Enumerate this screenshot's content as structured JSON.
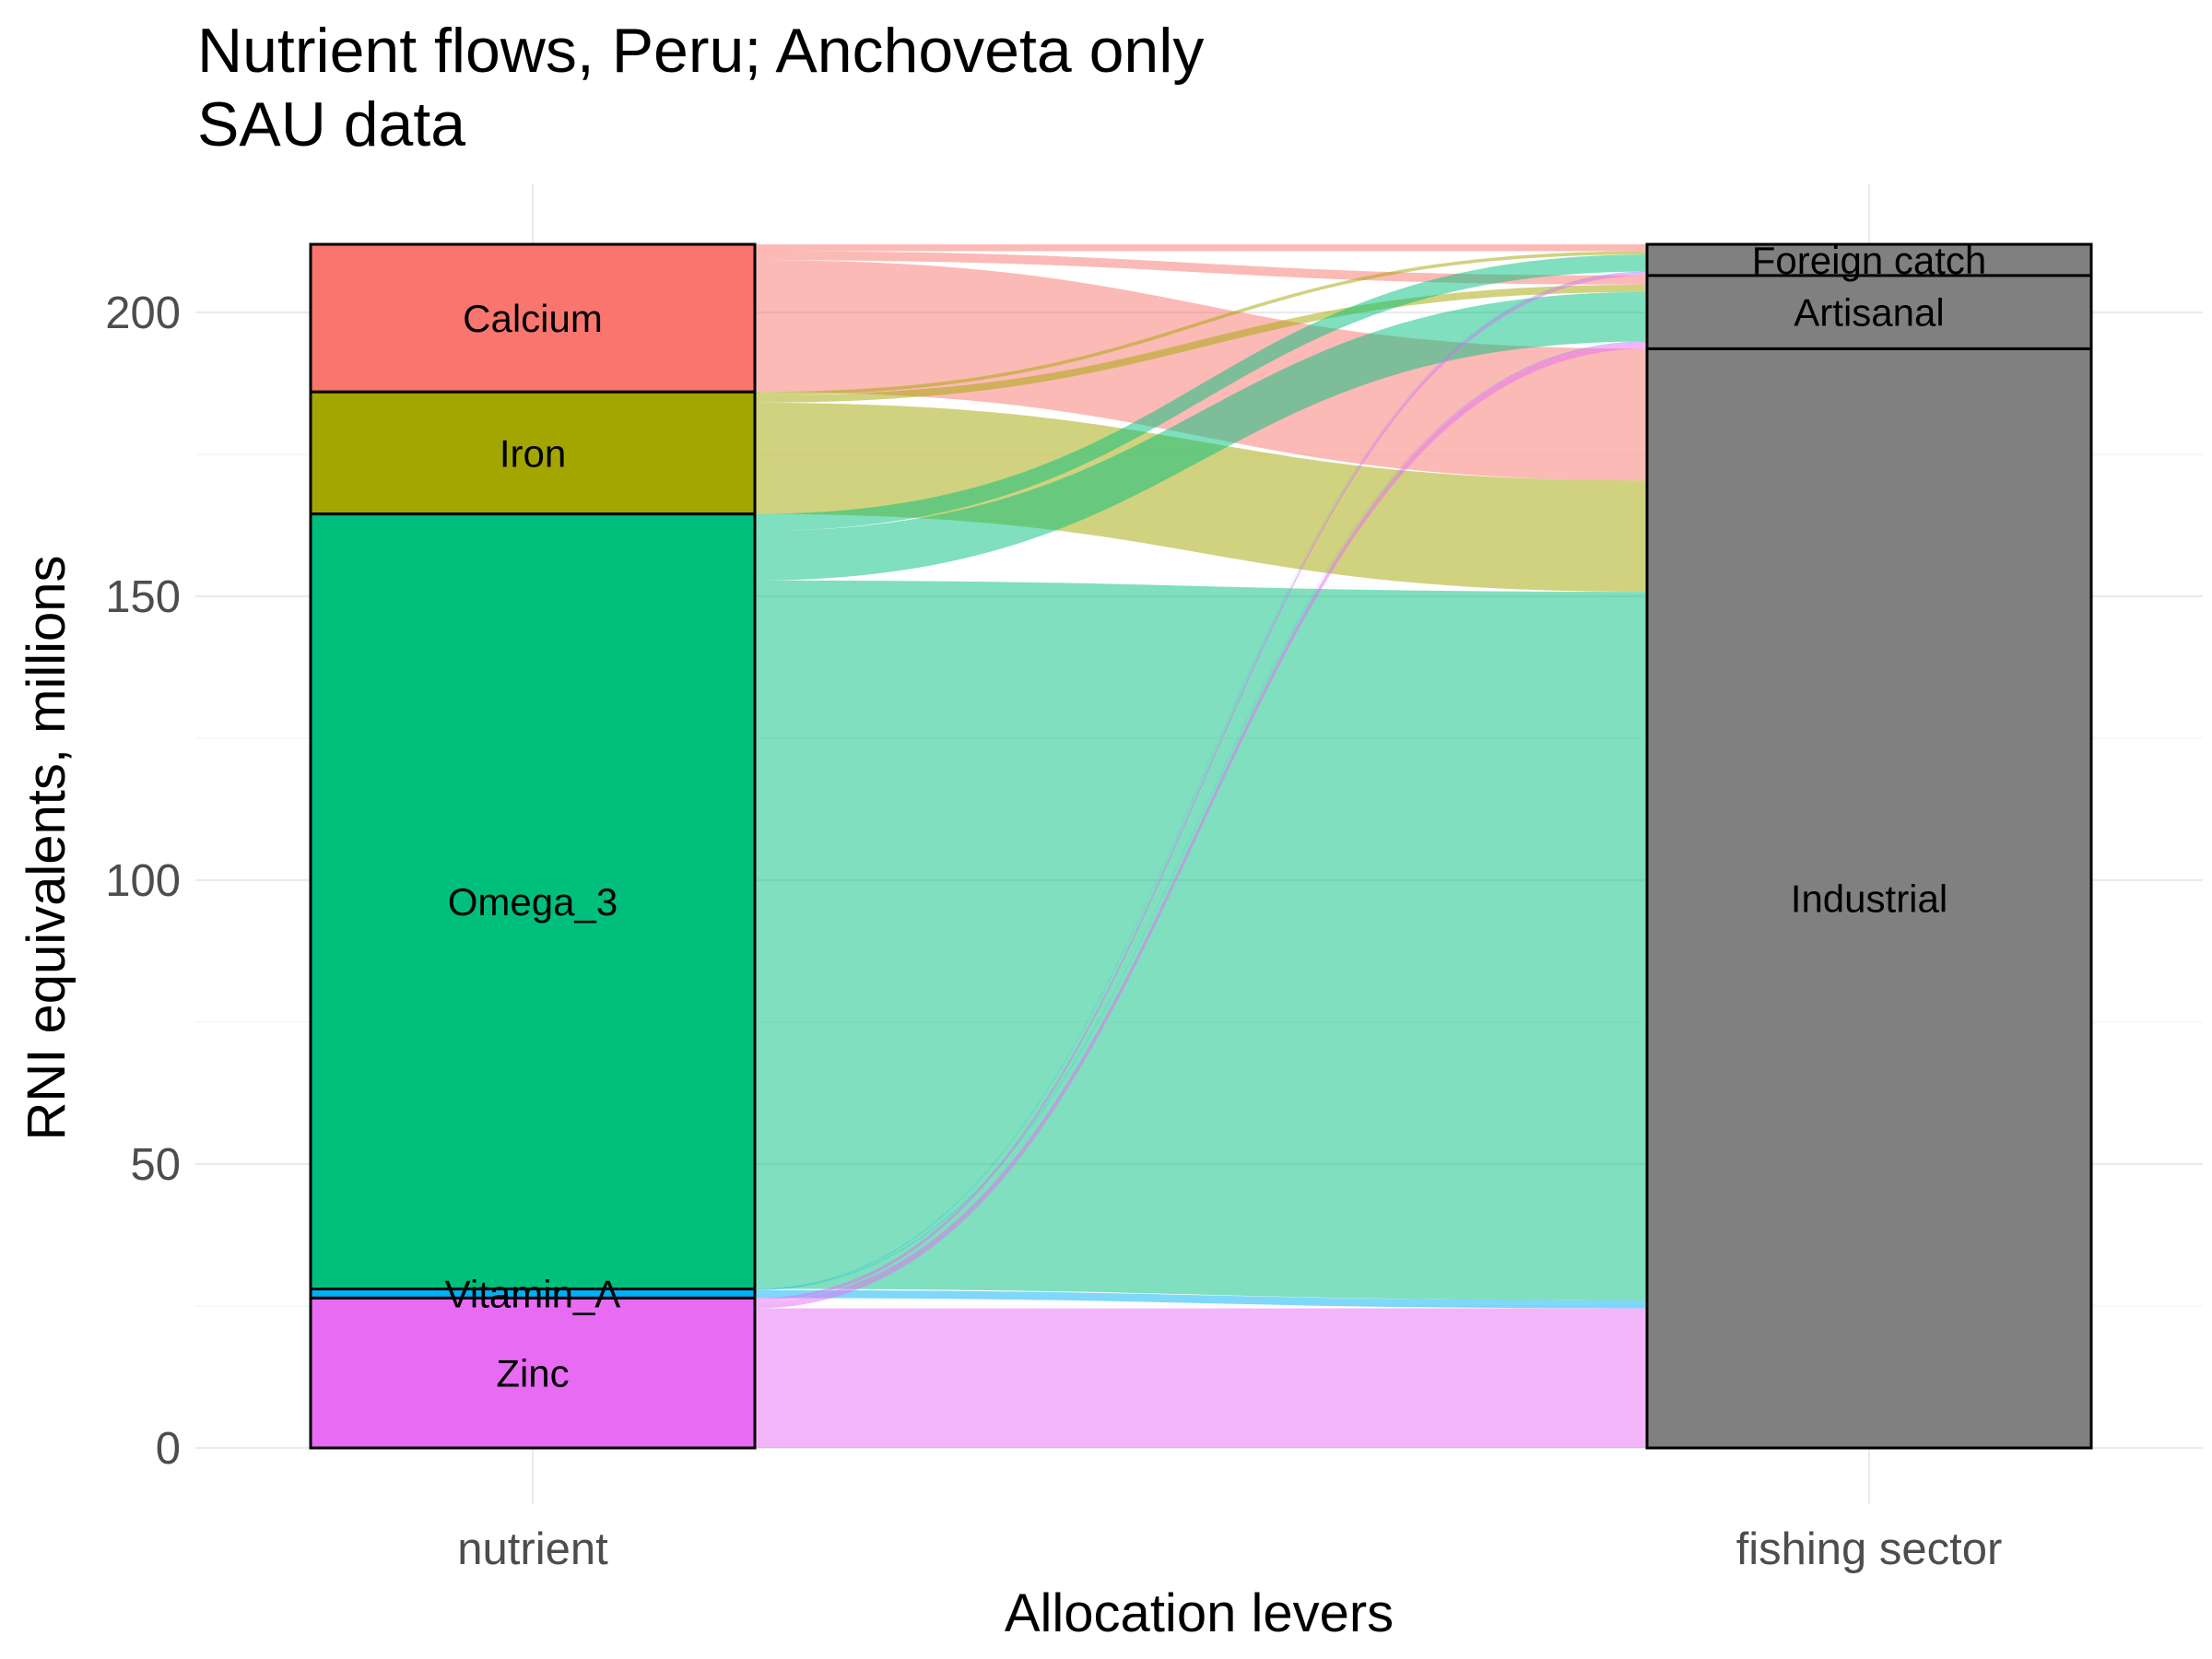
{
  "chart_data": {
    "type": "alluvial",
    "title": "Nutrient flows, Peru; Anchoveta only",
    "subtitle": "SAU data",
    "xlabel": "Allocation levers",
    "ylabel": "RNI equivalents, millions",
    "ylim": [
      0,
      212
    ],
    "yticks": [
      0,
      50,
      100,
      150,
      200
    ],
    "axes": [
      "nutrient",
      "fishing sector"
    ],
    "nutrients": [
      {
        "name": "Calcium",
        "color": "#F8766D",
        "value": 26.0
      },
      {
        "name": "Iron",
        "color": "#A3A500",
        "value": 21.5
      },
      {
        "name": "Omega_3",
        "color": "#00BF7D",
        "value": 136.5
      },
      {
        "name": "Vitamin_A",
        "color": "#00B0F6",
        "value": 1.6
      },
      {
        "name": "Zinc",
        "color": "#E76BF3",
        "value": 26.4
      }
    ],
    "sectors": [
      {
        "name": "Foreign catch",
        "color": "#808080",
        "value": 5.5
      },
      {
        "name": "Artisanal",
        "color": "#808080",
        "value": 12.9
      },
      {
        "name": "Industrial",
        "color": "#808080",
        "value": 193.6
      }
    ],
    "flows": [
      {
        "nutrient": "Calcium",
        "sector": "Foreign catch",
        "value": 1.2
      },
      {
        "nutrient": "Calcium",
        "sector": "Artisanal",
        "value": 1.6
      },
      {
        "nutrient": "Calcium",
        "sector": "Industrial",
        "value": 23.2
      },
      {
        "nutrient": "Iron",
        "sector": "Foreign catch",
        "value": 0.6
      },
      {
        "nutrient": "Iron",
        "sector": "Artisanal",
        "value": 1.3
      },
      {
        "nutrient": "Iron",
        "sector": "Industrial",
        "value": 19.6
      },
      {
        "nutrient": "Omega_3",
        "sector": "Foreign catch",
        "value": 3.0
      },
      {
        "nutrient": "Omega_3",
        "sector": "Artisanal",
        "value": 8.7
      },
      {
        "nutrient": "Omega_3",
        "sector": "Industrial",
        "value": 124.8
      },
      {
        "nutrient": "Vitamin_A",
        "sector": "Foreign catch",
        "value": 0.1
      },
      {
        "nutrient": "Vitamin_A",
        "sector": "Artisanal",
        "value": 0.1
      },
      {
        "nutrient": "Vitamin_A",
        "sector": "Industrial",
        "value": 1.4
      },
      {
        "nutrient": "Zinc",
        "sector": "Foreign catch",
        "value": 0.6
      },
      {
        "nutrient": "Zinc",
        "sector": "Artisanal",
        "value": 1.2
      },
      {
        "nutrient": "Zinc",
        "sector": "Industrial",
        "value": 24.6
      }
    ],
    "grid": true,
    "legend": "none"
  }
}
